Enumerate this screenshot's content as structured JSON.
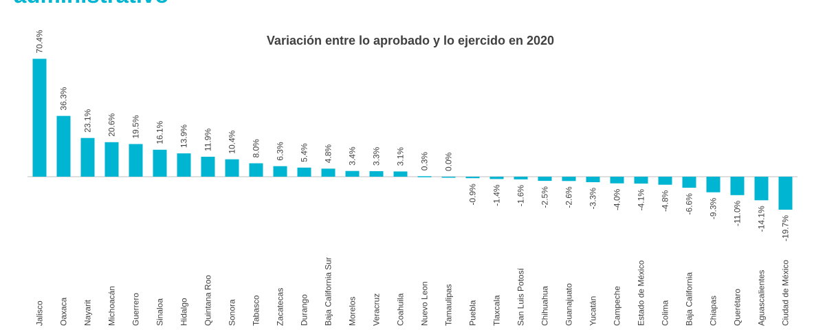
{
  "header": {
    "title": "administrativo"
  },
  "chart_data": {
    "type": "bar",
    "title": "Variación entre lo aprobado y lo ejercido en 2020",
    "xlabel": "",
    "ylabel": "",
    "ylim": [
      -19.7,
      70.4
    ],
    "grid": false,
    "bar_color": "#00b5d1",
    "categories": [
      "Jalisco",
      "Oaxaca",
      "Nayarit",
      "Michoacán",
      "Guerrero",
      "Sinaloa",
      "Hidalgo",
      "Quintana Roo",
      "Sonora",
      "Tabasco",
      "Zacatecas",
      "Durango",
      "Baja California Sur",
      "Morelos",
      "Veracruz",
      "Coahuila",
      "Nuevo Leon",
      "Tamaulipas",
      "Puebla",
      "Tlaxcala",
      "San Luis Potosí",
      "Chihuahua",
      "Guanajuato",
      "Yucatán",
      "Campeche",
      "Estado de México",
      "Colima",
      "Baja California",
      "Chiapas",
      "Querétaro",
      "Aguascalientes",
      "Ciudad de México"
    ],
    "values": [
      70.4,
      36.3,
      23.1,
      20.6,
      19.5,
      16.1,
      13.9,
      11.9,
      10.4,
      8.0,
      6.3,
      5.4,
      4.8,
      3.4,
      3.3,
      3.1,
      0.3,
      0.0,
      -0.9,
      -1.4,
      -1.6,
      -2.5,
      -2.6,
      -3.3,
      -4.0,
      -4.1,
      -4.8,
      -6.6,
      -9.3,
      -11.0,
      -14.1,
      -19.7
    ],
    "labels": [
      "70.4%",
      "36.3%",
      "23.1%",
      "20.6%",
      "19.5%",
      "16.1%",
      "13.9%",
      "11.9%",
      "10.4%",
      "8.0%",
      "6.3%",
      "5.4%",
      "4.8%",
      "3.4%",
      "3.3%",
      "3.1%",
      "0.3%",
      "0.0%",
      "-0.9%",
      "-1.4%",
      "-1.6%",
      "-2.5%",
      "-2.6%",
      "-3.3%",
      "-4.0%",
      "-4.1%",
      "-4.8%",
      "-6.6%",
      "-9.3%",
      "-11.0%",
      "-14.1%",
      "-19.7%"
    ]
  }
}
